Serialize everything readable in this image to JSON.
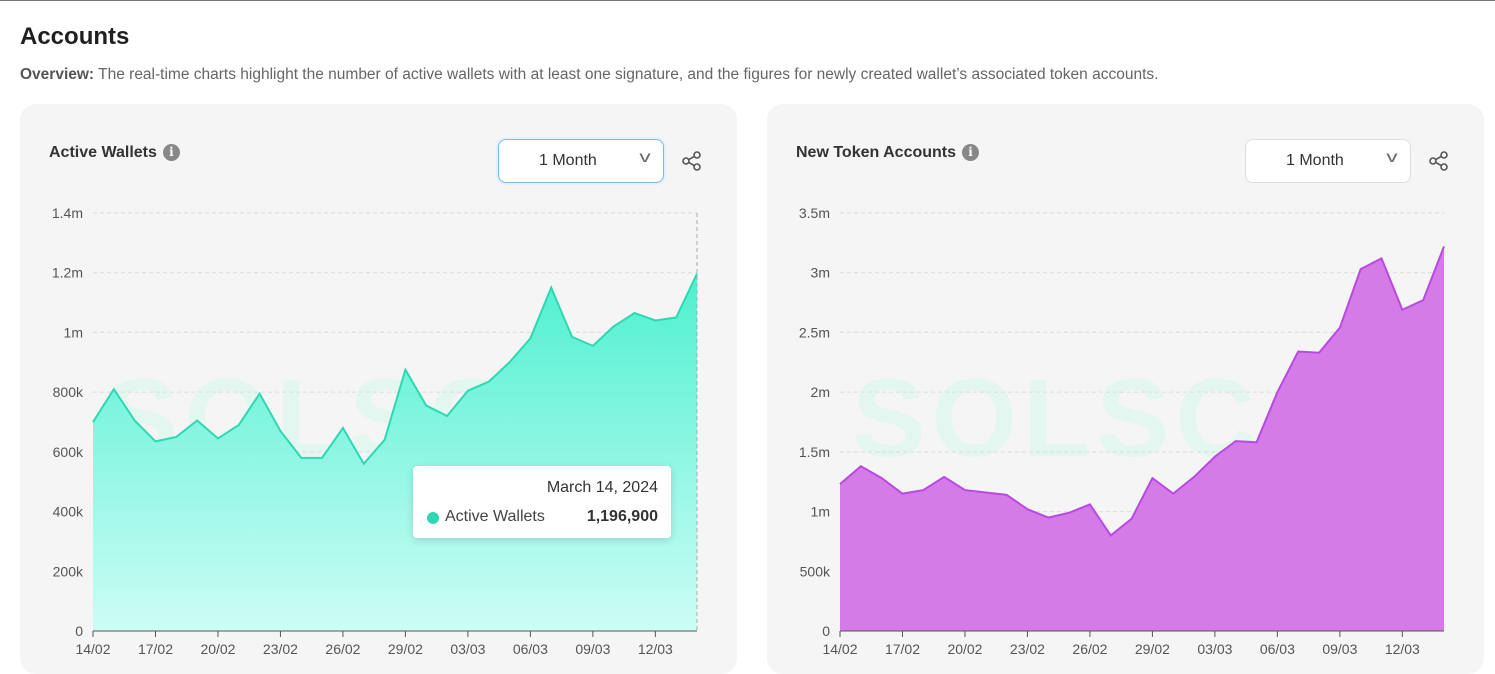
{
  "page": {
    "title": "Accounts",
    "overview_label": "Overview:",
    "overview_text": " The real-time charts highlight the number of active wallets with at least one signature, and the figures for newly created wallet’s associated token accounts."
  },
  "watermark": "SOLSCAN",
  "cards": [
    {
      "title": "Active Wallets",
      "range": "1 Month",
      "tooltip": {
        "date": "March 14, 2024",
        "series": "Active Wallets",
        "value": "1,196,900"
      }
    },
    {
      "title": "New Token Accounts",
      "range": "1 Month"
    }
  ],
  "chart_data": [
    {
      "type": "area",
      "title": "Active Wallets",
      "color": "#3ee8c2",
      "x": [
        "14/02",
        "15/02",
        "16/02",
        "17/02",
        "18/02",
        "19/02",
        "20/02",
        "21/02",
        "22/02",
        "23/02",
        "24/02",
        "25/02",
        "26/02",
        "27/02",
        "28/02",
        "29/02",
        "01/03",
        "02/03",
        "03/03",
        "04/03",
        "05/03",
        "06/03",
        "07/03",
        "08/03",
        "09/03",
        "10/03",
        "11/03",
        "12/03",
        "13/03",
        "14/03"
      ],
      "values": [
        700000,
        810000,
        705000,
        635000,
        650000,
        705000,
        645000,
        690000,
        795000,
        670000,
        580000,
        580000,
        680000,
        560000,
        640000,
        875000,
        755000,
        720000,
        805000,
        835000,
        900000,
        980000,
        1150000,
        985000,
        955000,
        1020000,
        1065000,
        1040000,
        1050000,
        1196900
      ],
      "yticks": [
        "0",
        "200k",
        "400k",
        "600k",
        "800k",
        "1m",
        "1.2m",
        "1.4m"
      ],
      "ylim": [
        0,
        1400000
      ],
      "xticks": [
        "14/02",
        "17/02",
        "20/02",
        "23/02",
        "26/02",
        "29/02",
        "03/03",
        "06/03",
        "09/03",
        "12/03"
      ]
    },
    {
      "type": "area",
      "title": "New Token Accounts",
      "color": "#d57be8",
      "x": [
        "14/02",
        "15/02",
        "16/02",
        "17/02",
        "18/02",
        "19/02",
        "20/02",
        "21/02",
        "22/02",
        "23/02",
        "24/02",
        "25/02",
        "26/02",
        "27/02",
        "28/02",
        "29/02",
        "01/03",
        "02/03",
        "03/03",
        "04/03",
        "05/03",
        "06/03",
        "07/03",
        "08/03",
        "09/03",
        "10/03",
        "11/03",
        "12/03",
        "13/03",
        "14/03"
      ],
      "values": [
        1230000,
        1380000,
        1280000,
        1150000,
        1180000,
        1290000,
        1180000,
        1160000,
        1140000,
        1020000,
        950000,
        990000,
        1060000,
        800000,
        940000,
        1280000,
        1150000,
        1290000,
        1460000,
        1590000,
        1580000,
        2000000,
        2340000,
        2330000,
        2540000,
        3030000,
        3120000,
        2690000,
        2770000,
        3220000
      ],
      "yticks": [
        "0",
        "500k",
        "1m",
        "1.5m",
        "2m",
        "2.5m",
        "3m",
        "3.5m"
      ],
      "ylim": [
        0,
        3500000
      ],
      "xticks": [
        "14/02",
        "17/02",
        "20/02",
        "23/02",
        "26/02",
        "29/02",
        "03/03",
        "06/03",
        "09/03",
        "12/03"
      ]
    }
  ]
}
